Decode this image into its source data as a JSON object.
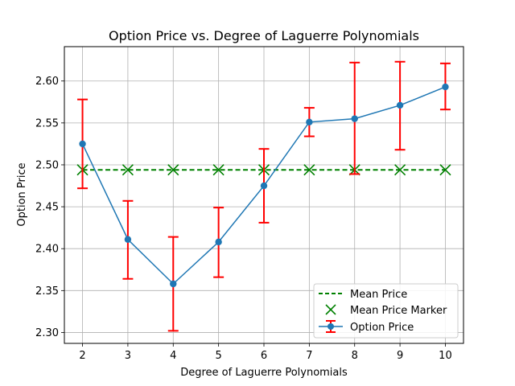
{
  "chart_data": {
    "type": "line",
    "title": "Option Price vs. Degree of Laguerre Polynomials",
    "xlabel": "Degree of Laguerre Polynomials",
    "ylabel": "Option Price",
    "x": [
      2,
      3,
      4,
      5,
      6,
      7,
      8,
      9,
      10
    ],
    "xlim": [
      1.6,
      10.4
    ],
    "ylim": [
      2.287,
      2.641
    ],
    "xticks": [
      "2",
      "3",
      "4",
      "5",
      "6",
      "7",
      "8",
      "9",
      "10"
    ],
    "yticks": [
      2.3,
      2.35,
      2.4,
      2.45,
      2.5,
      2.55,
      2.6
    ],
    "ytick_labels": [
      "2.30",
      "2.35",
      "2.40",
      "2.45",
      "2.50",
      "2.55",
      "2.60"
    ],
    "grid": true,
    "legend_position": "lower-right",
    "series": [
      {
        "name": "Mean Price",
        "style": "dashed-line",
        "color": "#008000",
        "values": [
          2.494,
          2.494,
          2.494,
          2.494,
          2.494,
          2.494,
          2.494,
          2.494,
          2.494
        ]
      },
      {
        "name": "Mean Price Marker",
        "style": "x-marker",
        "color": "#008000",
        "values": [
          2.494,
          2.494,
          2.494,
          2.494,
          2.494,
          2.494,
          2.494,
          2.494,
          2.494
        ]
      },
      {
        "name": "Option Price",
        "style": "line-marker",
        "color": "#1f77b4",
        "values": [
          2.525,
          2.411,
          2.358,
          2.408,
          2.475,
          2.551,
          2.555,
          2.571,
          2.593
        ],
        "error_low": [
          2.472,
          2.364,
          2.302,
          2.366,
          2.431,
          2.534,
          2.489,
          2.518,
          2.566
        ],
        "error_high": [
          2.578,
          2.457,
          2.414,
          2.449,
          2.519,
          2.568,
          2.622,
          2.623,
          2.621
        ],
        "error_color": "#ff0000"
      }
    ]
  }
}
